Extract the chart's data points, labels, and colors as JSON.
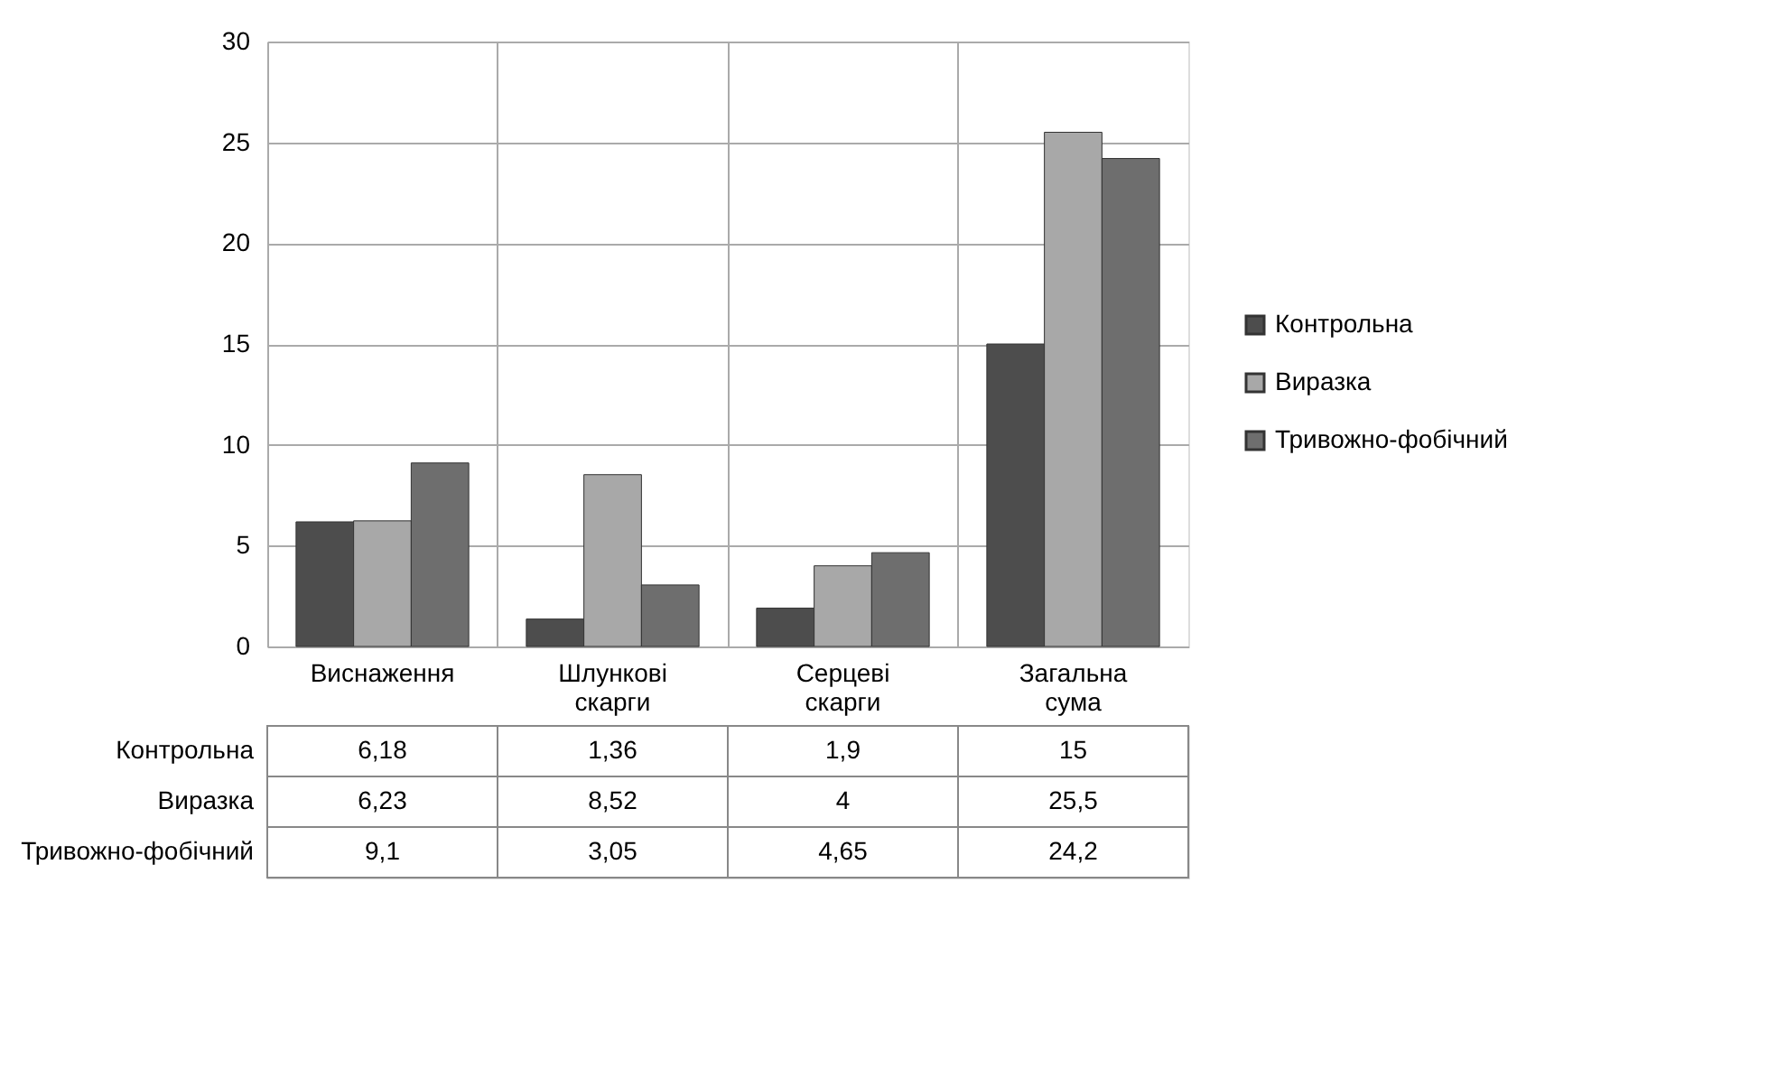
{
  "chart_data": {
    "type": "bar",
    "categories": [
      "Виснаження",
      "Шлункові скарги",
      "Серцеві скарги",
      "Загальна сума"
    ],
    "series": [
      {
        "name": "Контрольна",
        "color": "#4d4d4d",
        "values": [
          6.18,
          1.36,
          1.9,
          15
        ],
        "value_labels": [
          "6,18",
          "1,36",
          "1,9",
          "15"
        ]
      },
      {
        "name": "Виразка",
        "color": "#a8a8a8",
        "values": [
          6.23,
          8.52,
          4,
          25.5
        ],
        "value_labels": [
          "6,23",
          "8,52",
          "4",
          "25,5"
        ]
      },
      {
        "name": "Тривожно-фобічний",
        "color": "#6e6e6e",
        "values": [
          9.1,
          3.05,
          4.65,
          24.2
        ],
        "value_labels": [
          "9,1",
          "3,05",
          "4,65",
          "24,2"
        ]
      }
    ],
    "ylim": [
      0,
      30
    ],
    "yticks": [
      0,
      5,
      10,
      15,
      20,
      25,
      30
    ],
    "grid": true,
    "legend": "right"
  }
}
